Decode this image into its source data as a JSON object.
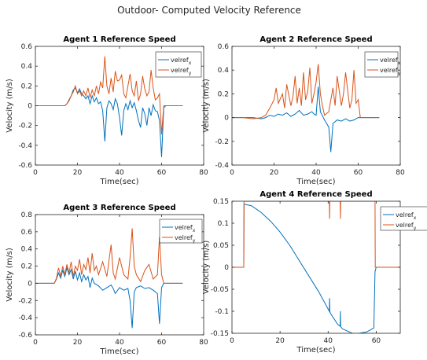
{
  "figure_title": "Outdoor- Computed Velocity Reference",
  "colors": {
    "x_series": "#0072BD",
    "y_series": "#D95319",
    "axis": "#262626"
  },
  "chart_data": [
    {
      "type": "line",
      "title": "Agent 1 Reference Speed",
      "xlabel": "Time(sec)",
      "ylabel": "Velocity (m/s)",
      "xlim": [
        0,
        80
      ],
      "ylim": [
        -0.6,
        0.6
      ],
      "xticks": [
        0,
        20,
        40,
        60,
        80
      ],
      "yticks": [
        -0.6,
        -0.4,
        -0.2,
        0,
        0.2,
        0.4,
        0.6
      ],
      "xtick_labels": [
        "0",
        "20",
        "40",
        "60",
        "80"
      ],
      "ytick_labels": [
        "-0.6",
        "-0.4",
        "-0.2",
        "0",
        "0.2",
        "0.4",
        "0.6"
      ],
      "legend_position": "top-right",
      "series": [
        {
          "name": "velref",
          "subscript": "x",
          "x": [
            0,
            14,
            15,
            16,
            17,
            18,
            19,
            20,
            21,
            22,
            23,
            24,
            25,
            26,
            27,
            28,
            29,
            30,
            31,
            32,
            33,
            34,
            35,
            36,
            37,
            38,
            39,
            40,
            41,
            42,
            43,
            44,
            45,
            46,
            47,
            48,
            49,
            50,
            51,
            52,
            53,
            54,
            55,
            56,
            57,
            58,
            59,
            60,
            61,
            62,
            70
          ],
          "y": [
            0,
            0,
            0.02,
            0.06,
            0.1,
            0.16,
            0.18,
            0.13,
            0.17,
            0.12,
            0.1,
            0.07,
            0.1,
            0.02,
            0.1,
            0.04,
            0.08,
            0.02,
            0.04,
            -0.05,
            -0.36,
            -0.02,
            0.05,
            0.02,
            -0.04,
            0.07,
            0.02,
            -0.12,
            -0.3,
            -0.05,
            0.02,
            -0.04,
            0.05,
            -0.02,
            0.03,
            -0.05,
            -0.15,
            -0.22,
            -0.02,
            -0.08,
            -0.2,
            -0.02,
            -0.1,
            0.01,
            -0.05,
            -0.06,
            -0.15,
            -0.52,
            -0.02,
            0,
            0
          ]
        },
        {
          "name": "velref",
          "subscript": "y",
          "x": [
            0,
            14,
            15,
            16,
            17,
            18,
            19,
            20,
            21,
            22,
            23,
            24,
            25,
            26,
            27,
            28,
            29,
            30,
            31,
            32,
            33,
            34,
            35,
            36,
            37,
            38,
            39,
            40,
            41,
            42,
            43,
            44,
            45,
            46,
            47,
            48,
            49,
            50,
            51,
            52,
            53,
            54,
            55,
            56,
            57,
            58,
            59,
            60,
            61,
            62,
            70
          ],
          "y": [
            0,
            0,
            0.02,
            0.05,
            0.1,
            0.14,
            0.2,
            0.12,
            0.15,
            0.1,
            0.15,
            0.1,
            0.18,
            0.08,
            0.16,
            0.1,
            0.2,
            0.12,
            0.24,
            0.18,
            0.5,
            0.2,
            0.12,
            0.28,
            0.14,
            0.35,
            0.25,
            0.26,
            0.31,
            0.12,
            0.08,
            0.2,
            0.32,
            0.15,
            0.1,
            0.25,
            0.05,
            0.12,
            0.3,
            0.17,
            0.1,
            0.14,
            0.36,
            0.18,
            0.06,
            0.08,
            0.12,
            -0.29,
            0,
            0,
            0
          ]
        }
      ]
    },
    {
      "type": "line",
      "title": "Agent 2 Reference Speed",
      "xlabel": "Time(sec)",
      "ylabel": "Velocity (m/s)",
      "xlim": [
        0,
        80
      ],
      "ylim": [
        -0.4,
        0.6
      ],
      "xticks": [
        0,
        20,
        40,
        60,
        80
      ],
      "yticks": [
        -0.4,
        -0.2,
        0,
        0.2,
        0.4,
        0.6
      ],
      "xtick_labels": [
        "0",
        "20",
        "40",
        "60",
        "80"
      ],
      "ytick_labels": [
        "-0.4",
        "-0.2",
        "0",
        "0.2",
        "0.4",
        "0.6"
      ],
      "legend_position": "top-right",
      "series": [
        {
          "name": "velref",
          "subscript": "x",
          "x": [
            0,
            5,
            10,
            14,
            16,
            18,
            20,
            22,
            24,
            26,
            28,
            30,
            32,
            34,
            36,
            38,
            39,
            40,
            41,
            42,
            44,
            46,
            47,
            48,
            50,
            52,
            54,
            56,
            58,
            59,
            60,
            61,
            70
          ],
          "y": [
            0,
            0,
            0,
            -0.01,
            0,
            0.02,
            0.01,
            0.03,
            0.02,
            0.04,
            0.01,
            0.03,
            0.06,
            0.02,
            0.03,
            0.05,
            0.03,
            0.02,
            0.26,
            0.05,
            -0.02,
            -0.08,
            -0.29,
            -0.05,
            -0.02,
            -0.03,
            -0.01,
            -0.03,
            -0.02,
            -0.01,
            0,
            0,
            0
          ]
        },
        {
          "name": "velref",
          "subscript": "y",
          "x": [
            0,
            5,
            10,
            14,
            16,
            18,
            20,
            21,
            22,
            24,
            25,
            26,
            28,
            29,
            30,
            31,
            32,
            33,
            34,
            35,
            36,
            37,
            38,
            39,
            40,
            41,
            42,
            43,
            44,
            46,
            48,
            49,
            50,
            52,
            53,
            54,
            56,
            57,
            58,
            59,
            60,
            61,
            70
          ],
          "y": [
            0,
            0,
            -0.01,
            0,
            0.02,
            0.08,
            0.15,
            0.25,
            0.12,
            0.2,
            0.08,
            0.28,
            0.1,
            0.18,
            0.35,
            0.12,
            0.25,
            0.1,
            0.38,
            0.15,
            0.22,
            0.42,
            0.12,
            0.2,
            0.3,
            0.45,
            0.2,
            0.1,
            0.02,
            0.05,
            0.25,
            0.1,
            0.35,
            0.1,
            0.2,
            0.38,
            0.08,
            0.15,
            0.4,
            0.12,
            0.15,
            0,
            0
          ]
        }
      ]
    },
    {
      "type": "line",
      "title": "Agent 3 Reference Speed",
      "xlabel": "Time(sec)",
      "ylabel": "Velocity (m/s)",
      "xlim": [
        0,
        80
      ],
      "ylim": [
        -0.6,
        0.8
      ],
      "xticks": [
        0,
        20,
        40,
        60,
        80
      ],
      "yticks": [
        -0.6,
        -0.4,
        -0.2,
        0,
        0.2,
        0.4,
        0.6,
        0.8
      ],
      "xtick_labels": [
        "0",
        "20",
        "40",
        "60",
        "80"
      ],
      "ytick_labels": [
        "-0.6",
        "-0.4",
        "-0.2",
        "0",
        "0.2",
        "0.4",
        "0.6",
        "0.8"
      ],
      "legend_position": "top-right",
      "series": [
        {
          "name": "velref",
          "subscript": "x",
          "x": [
            0,
            9,
            10,
            11,
            12,
            13,
            14,
            15,
            16,
            17,
            18,
            19,
            20,
            21,
            22,
            23,
            24,
            25,
            26,
            27,
            28,
            30,
            32,
            34,
            36,
            37,
            38,
            40,
            42,
            44,
            45,
            46,
            47,
            48,
            50,
            52,
            54,
            56,
            58,
            59,
            60,
            61,
            70
          ],
          "y": [
            0,
            0,
            0.05,
            0.12,
            0.06,
            0.15,
            0.08,
            0.18,
            0.1,
            0.16,
            0.05,
            0.14,
            0.04,
            0.12,
            0.02,
            0.1,
            0.04,
            0.08,
            -0.05,
            0.06,
            0,
            -0.03,
            -0.08,
            -0.05,
            -0.02,
            -0.06,
            -0.12,
            -0.05,
            -0.08,
            -0.06,
            -0.2,
            -0.52,
            -0.1,
            -0.05,
            -0.03,
            -0.06,
            -0.05,
            -0.08,
            -0.12,
            -0.47,
            -0.05,
            0,
            0
          ]
        },
        {
          "name": "velref",
          "subscript": "y",
          "x": [
            0,
            9,
            10,
            11,
            12,
            13,
            14,
            15,
            16,
            17,
            18,
            19,
            20,
            21,
            22,
            23,
            24,
            25,
            26,
            27,
            28,
            29,
            30,
            32,
            34,
            36,
            37,
            38,
            40,
            42,
            44,
            45,
            46,
            47,
            48,
            50,
            52,
            54,
            56,
            58,
            59,
            60,
            61,
            70
          ],
          "y": [
            0,
            0,
            0.06,
            0.18,
            0.08,
            0.2,
            0.1,
            0.22,
            0.12,
            0.25,
            0.08,
            0.2,
            0.15,
            0.28,
            0.1,
            0.22,
            0.16,
            0.3,
            0.12,
            0.35,
            0.15,
            0.2,
            0.1,
            0.25,
            0.08,
            0.45,
            0.12,
            0.05,
            0.3,
            0.1,
            0.05,
            0.3,
            0.64,
            0.2,
            0.1,
            0.02,
            0.15,
            0.22,
            0.05,
            0.1,
            0.54,
            0.1,
            0,
            0
          ]
        }
      ]
    },
    {
      "type": "line",
      "title": "Agent 4 Reference Speed",
      "xlabel": "Time(sec)",
      "ylabel": "Velocity (m/s)",
      "xlim": [
        0,
        70
      ],
      "ylim": [
        -0.15,
        0.15
      ],
      "xticks": [
        0,
        20,
        40,
        60
      ],
      "yticks": [
        -0.15,
        -0.1,
        -0.05,
        0,
        0.05,
        0.1,
        0.15
      ],
      "xtick_labels": [
        "0",
        "20",
        "40",
        "60"
      ],
      "ytick_labels": [
        "-0.15",
        "-0.1",
        "-0.05",
        "0",
        "0.05",
        "0.1",
        "0.15"
      ],
      "legend_position": "top-right",
      "series": [
        {
          "name": "velref",
          "subscript": "x",
          "x": [
            0,
            4.9,
            5,
            8,
            12,
            16,
            20,
            24,
            28,
            32,
            36,
            40,
            40.5,
            40.6,
            40.7,
            41,
            44,
            45,
            45.1,
            45.2,
            46,
            50,
            52,
            56,
            59,
            59.5,
            60,
            64,
            70
          ],
          "y": [
            0,
            0,
            0.143,
            0.14,
            0.125,
            0.105,
            0.08,
            0.05,
            0.015,
            -0.02,
            -0.055,
            -0.095,
            -0.1,
            -0.07,
            -0.1,
            -0.105,
            -0.13,
            -0.134,
            -0.1,
            -0.135,
            -0.14,
            -0.15,
            -0.151,
            -0.147,
            -0.138,
            -0.01,
            0,
            0,
            0
          ]
        },
        {
          "name": "velref",
          "subscript": "y",
          "x": [
            0,
            4.9,
            5,
            40,
            40.5,
            40.6,
            40.7,
            41,
            45,
            45.1,
            45.2,
            46,
            59.5,
            59.6,
            70
          ],
          "y": [
            0,
            0,
            0.15,
            0.15,
            0.15,
            0.11,
            0.15,
            0.15,
            0.15,
            0.11,
            0.15,
            0.15,
            0.15,
            0,
            0
          ]
        }
      ]
    }
  ]
}
